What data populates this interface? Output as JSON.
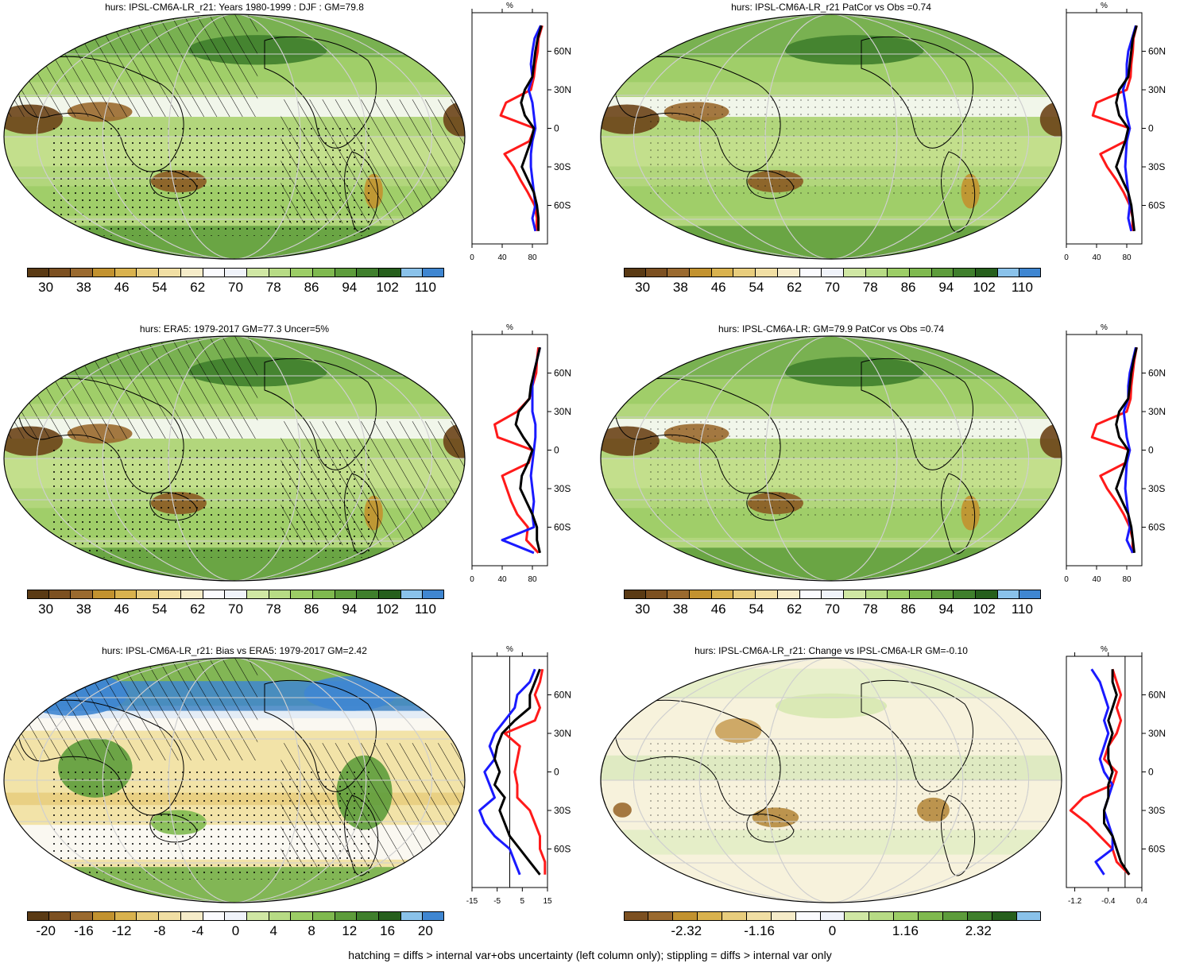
{
  "footer": "hatching = diffs > internal var+obs uncertainty (left column only); stippling = diffs > internal var only",
  "colors": {
    "abs_scale": [
      "#5a3a14",
      "#7c5021",
      "#9a6a2f",
      "#c2922f",
      "#d9b24e",
      "#e8cd7d",
      "#f1dfa4",
      "#f6ecc9",
      "#fbfbfe",
      "#f0f3fa",
      "#d0e7a4",
      "#b7db85",
      "#9ccd66",
      "#7fb94f",
      "#5d9c3b",
      "#3f7f2c",
      "#265f1c",
      "#8ac2ea",
      "#3f86d1"
    ],
    "profile_red": "#ff1a1a",
    "profile_blue": "#1a1aff",
    "profile_black": "#000000"
  },
  "chart_data": [
    {
      "type": "heatmap",
      "title": "hurs: IPSL-CM6A-LR_r21: Years 1980-1999 : DJF : GM=79.8",
      "colorbar_labels": [
        "30",
        "38",
        "46",
        "54",
        "62",
        "70",
        "78",
        "86",
        "94",
        "102",
        "110"
      ],
      "profile": {
        "xlabel": "%",
        "xticks": [
          "0",
          "40",
          "80"
        ],
        "xlim": [
          0,
          100
        ],
        "yticks": [
          "60N",
          "30N",
          "0",
          "30S",
          "60S"
        ],
        "lat": [
          80,
          70,
          60,
          50,
          40,
          30,
          20,
          10,
          0,
          -10,
          -20,
          -30,
          -40,
          -50,
          -60,
          -70,
          -80
        ],
        "series": [
          {
            "values": [
              93,
              88,
              87,
              84,
              82,
              78,
              45,
              38,
              83,
              76,
              43,
              55,
              64,
              74,
              83,
              86,
              85
            ]
          },
          {
            "values": [
              91,
              83,
              80,
              78,
              80,
              75,
              80,
              82,
              84,
              80,
              78,
              78,
              80,
              82,
              84,
              80,
              84
            ]
          },
          {
            "values": [
              92,
              87,
              84,
              82,
              80,
              70,
              65,
              70,
              82,
              78,
              72,
              66,
              74,
              82,
              86,
              88,
              88
            ]
          }
        ]
      }
    },
    {
      "type": "heatmap",
      "title": "hurs: IPSL-CM6A-LR_r21 PatCor vs Obs =0.74",
      "colorbar_labels": [
        "30",
        "38",
        "46",
        "54",
        "62",
        "70",
        "78",
        "86",
        "94",
        "102",
        "110"
      ],
      "profile": {
        "xlabel": "%",
        "xticks": [
          "0",
          "40",
          "80"
        ],
        "xlim": [
          0,
          100
        ],
        "yticks": [
          "60N",
          "30N",
          "0",
          "30S",
          "60S"
        ],
        "lat": [
          80,
          70,
          60,
          50,
          40,
          30,
          20,
          10,
          0,
          -10,
          -20,
          -30,
          -40,
          -50,
          -60,
          -70,
          -80
        ],
        "series": [
          {
            "values": [
              93,
              89,
              88,
              86,
              85,
              80,
              40,
              35,
              84,
              78,
              45,
              54,
              66,
              76,
              84,
              88,
              87
            ]
          },
          {
            "values": [
              92,
              87,
              82,
              80,
              80,
              75,
              78,
              80,
              84,
              80,
              79,
              78,
              80,
              82,
              84,
              82,
              86
            ]
          },
          {
            "values": [
              93,
              88,
              86,
              84,
              82,
              70,
              66,
              70,
              82,
              78,
              72,
              66,
              74,
              82,
              86,
              88,
              90
            ]
          }
        ]
      }
    },
    {
      "type": "heatmap",
      "title": "hurs: ERA5: 1979-2017 GM=77.3 Uncer=5%",
      "colorbar_labels": [
        "30",
        "38",
        "46",
        "54",
        "62",
        "70",
        "78",
        "86",
        "94",
        "102",
        "110"
      ],
      "profile": {
        "xlabel": "%",
        "xticks": [
          "0",
          "40",
          "80"
        ],
        "xlim": [
          0,
          100
        ],
        "yticks": [
          "60N",
          "30N",
          "0",
          "30S",
          "60S"
        ],
        "lat": [
          80,
          70,
          60,
          50,
          40,
          30,
          20,
          10,
          0,
          -10,
          -20,
          -30,
          -40,
          -50,
          -60,
          -70,
          -80
        ],
        "series": [
          {
            "values": [
              88,
              86,
              85,
              80,
              76,
              60,
              30,
              34,
              80,
              75,
              40,
              46,
              52,
              60,
              74,
              72,
              88
            ]
          },
          {
            "values": [
              90,
              86,
              82,
              80,
              80,
              80,
              84,
              84,
              82,
              80,
              78,
              80,
              82,
              80,
              82,
              40,
              82
            ]
          },
          {
            "values": [
              90,
              86,
              82,
              78,
              76,
              62,
              58,
              68,
              80,
              74,
              66,
              64,
              72,
              80,
              86,
              86,
              90
            ]
          }
        ]
      }
    },
    {
      "type": "heatmap",
      "title": "hurs: IPSL-CM6A-LR: GM=79.9 PatCor vs Obs =0.74",
      "colorbar_labels": [
        "30",
        "38",
        "46",
        "54",
        "62",
        "70",
        "78",
        "86",
        "94",
        "102",
        "110"
      ],
      "profile": {
        "xlabel": "%",
        "xticks": [
          "0",
          "40",
          "80"
        ],
        "xlim": [
          0,
          100
        ],
        "yticks": [
          "60N",
          "30N",
          "0",
          "30S",
          "60S"
        ],
        "lat": [
          80,
          70,
          60,
          50,
          40,
          30,
          20,
          10,
          0,
          -10,
          -20,
          -30,
          -40,
          -50,
          -60,
          -70,
          -80
        ],
        "series": [
          {
            "values": [
              93,
              90,
              88,
              86,
              85,
              80,
              40,
              34,
              84,
              78,
              45,
              54,
              66,
              76,
              84,
              88,
              87
            ]
          },
          {
            "values": [
              92,
              88,
              84,
              82,
              82,
              76,
              78,
              80,
              84,
              80,
              79,
              78,
              80,
              82,
              84,
              80,
              88
            ]
          },
          {
            "values": [
              93,
              89,
              86,
              84,
              82,
              70,
              66,
              70,
              82,
              78,
              72,
              66,
              74,
              82,
              86,
              88,
              90
            ]
          }
        ]
      }
    },
    {
      "type": "heatmap",
      "title": "hurs: IPSL-CM6A-LR_r21: Bias vs ERA5: 1979-2017 GM=2.42",
      "colorbar_labels": [
        "-20",
        "-16",
        "-12",
        "-8",
        "-4",
        "0",
        "4",
        "8",
        "12",
        "16",
        "20"
      ],
      "profile": {
        "xlabel": "%",
        "xticks": [
          "-15",
          "-5",
          "5",
          "15"
        ],
        "xlim": [
          -15,
          15
        ],
        "yticks": [
          "60N",
          "30N",
          "0",
          "30S",
          "60S"
        ],
        "lat": [
          80,
          70,
          60,
          50,
          40,
          30,
          20,
          10,
          0,
          -10,
          -20,
          -30,
          -40,
          -50,
          -60,
          -70,
          -80
        ],
        "series": [
          {
            "values": [
              13,
              12,
              10,
              12,
              10,
              -2,
              4,
              3,
              2,
              3,
              3,
              8,
              10,
              12,
              12,
              14,
              14
            ]
          },
          {
            "values": [
              10,
              8,
              3,
              2,
              -2,
              -6,
              -8,
              -6,
              -10,
              -8,
              -6,
              -12,
              -10,
              -6,
              0,
              2,
              4
            ]
          },
          {
            "values": [
              12,
              10,
              8,
              8,
              2,
              -3,
              -5,
              -6,
              -4,
              -6,
              -2,
              -4,
              -2,
              0,
              4,
              8,
              12
            ]
          }
        ]
      }
    },
    {
      "type": "heatmap",
      "title": "hurs: IPSL-CM6A-LR_r21: Change vs IPSL-CM6A-LR GM=-0.10",
      "colorbar_labels": [
        "-2.32",
        "-1.16",
        "0",
        "1.16",
        "2.32"
      ],
      "profile": {
        "xlabel": "%",
        "xticks": [
          "-1.2",
          "-0.4",
          "0.4"
        ],
        "xlim": [
          -1.4,
          0.4
        ],
        "yticks": [
          "60N",
          "30N",
          "0",
          "30S",
          "60S"
        ],
        "lat": [
          80,
          70,
          60,
          50,
          40,
          30,
          20,
          10,
          0,
          -10,
          -20,
          -30,
          -40,
          -50,
          -60,
          -70,
          -80
        ],
        "series": [
          {
            "values": [
              -0.3,
              -0.2,
              -0.1,
              -0.2,
              -0.1,
              -0.2,
              -0.4,
              -0.5,
              -0.2,
              -0.3,
              -1.0,
              -1.3,
              -0.9,
              -0.6,
              -0.3,
              -0.2,
              0.1
            ]
          },
          {
            "values": [
              -0.8,
              -0.6,
              -0.5,
              -0.4,
              -0.5,
              -0.4,
              -0.5,
              -0.6,
              -0.5,
              -0.3,
              -0.4,
              -0.5,
              -0.4,
              -0.3,
              -0.3,
              -0.7,
              -0.5
            ]
          },
          {
            "values": [
              -0.3,
              -0.3,
              -0.2,
              -0.3,
              -0.4,
              -0.3,
              -0.4,
              -0.4,
              -0.3,
              -0.4,
              -0.4,
              -0.5,
              -0.5,
              -0.3,
              -0.2,
              -0.1,
              0.1
            ]
          }
        ]
      }
    }
  ]
}
